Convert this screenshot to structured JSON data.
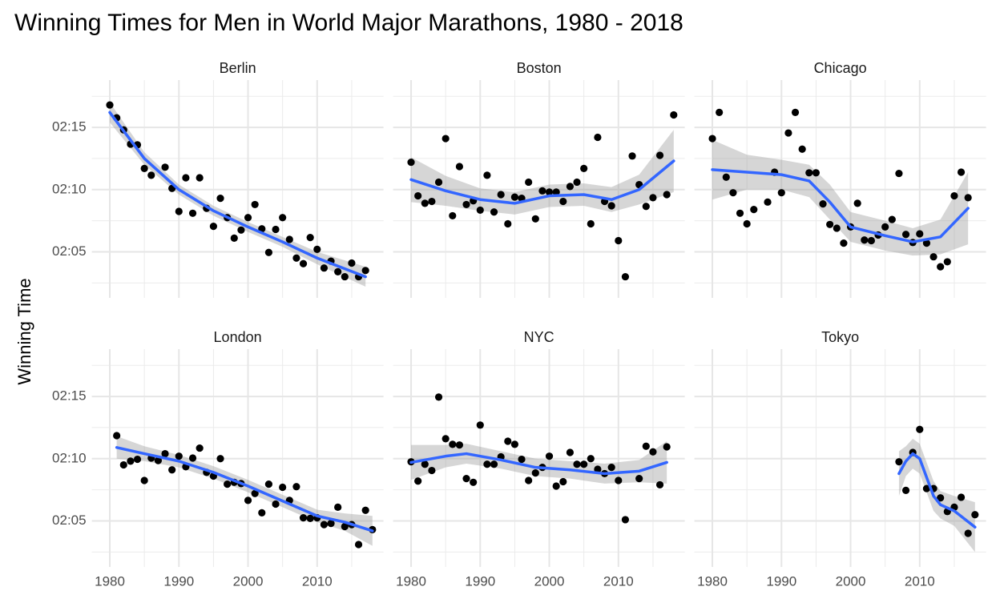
{
  "chart_data": {
    "type": "scatter",
    "title": "Winning Times for Men in World Major Marathons, 1980 - 2018",
    "ylabel": "Winning Time",
    "xlim": [
      1977.4,
      2019.6
    ],
    "xticks": [
      1980,
      1990,
      2000,
      2010
    ],
    "minor_xticks": [
      1985,
      1995,
      2005,
      2015
    ],
    "ylim": [
      121.3,
      138.8
    ],
    "yticks": [
      {
        "value": 125,
        "label": "02:05"
      },
      {
        "value": 130,
        "label": "02:10"
      },
      {
        "value": 135,
        "label": "02:15"
      }
    ],
    "minor_yticks": [
      122.5,
      127.5,
      132.5,
      137.5
    ],
    "grid": true,
    "point_color": "#000000",
    "fit_color": "#3366FF",
    "band_color": "#999999",
    "panels": [
      {
        "title": "Berlin",
        "x": [
          1980,
          1981,
          1982,
          1983,
          1984,
          1985,
          1986,
          1988,
          1989,
          1990,
          1991,
          1992,
          1993,
          1994,
          1995,
          1996,
          1997,
          1998,
          1999,
          2000,
          2001,
          2002,
          2003,
          2004,
          2005,
          2006,
          2007,
          2008,
          2009,
          2010,
          2011,
          2012,
          2013,
          2014,
          2015,
          2016,
          2017
        ],
        "values": [
          136.8,
          135.77,
          134.8,
          133.65,
          133.6,
          131.7,
          131.15,
          131.8,
          130.1,
          128.25,
          130.95,
          128.1,
          130.95,
          128.5,
          127.05,
          129.3,
          127.75,
          126.1,
          126.75,
          127.75,
          128.8,
          126.85,
          124.95,
          126.8,
          127.75,
          126.0,
          124.5,
          124.05,
          126.15,
          125.2,
          123.7,
          124.25,
          123.4,
          123.0,
          124.1,
          123.0,
          123.5
        ],
        "fit_x": [
          1980,
          1985,
          1990,
          1995,
          2000,
          2005,
          2010,
          2017
        ],
        "fit": [
          136.2,
          132.5,
          130.0,
          128.3,
          127.0,
          125.8,
          124.5,
          123.0
        ],
        "fit_low": [
          135.4,
          132.0,
          129.6,
          127.9,
          126.6,
          125.4,
          124.0,
          122.2
        ],
        "fit_high": [
          137.0,
          133.0,
          130.4,
          128.7,
          127.4,
          126.2,
          125.0,
          123.8
        ]
      },
      {
        "title": "Boston",
        "x": [
          1980,
          1981,
          1982,
          1983,
          1984,
          1985,
          1986,
          1987,
          1988,
          1989,
          1990,
          1991,
          1992,
          1993,
          1994,
          1995,
          1996,
          1997,
          1998,
          1999,
          2000,
          2001,
          2002,
          2003,
          2004,
          2005,
          2006,
          2007,
          2008,
          2009,
          2010,
          2011,
          2012,
          2013,
          2014,
          2015,
          2016,
          2017,
          2018
        ],
        "values": [
          132.2,
          129.5,
          128.9,
          129.05,
          130.6,
          134.1,
          127.9,
          131.85,
          128.8,
          129.1,
          128.35,
          131.15,
          128.2,
          129.6,
          127.25,
          129.4,
          129.3,
          130.6,
          127.65,
          129.9,
          129.8,
          129.8,
          129.05,
          130.25,
          130.6,
          131.7,
          127.25,
          134.2,
          129.05,
          128.7,
          125.9,
          123.0,
          132.7,
          130.4,
          128.65,
          129.35,
          132.75,
          129.6,
          136.0
        ],
        "fit_x": [
          1980,
          1985,
          1990,
          1995,
          2000,
          2005,
          2009,
          2013,
          2018
        ],
        "fit": [
          130.8,
          129.9,
          129.2,
          128.9,
          129.5,
          129.6,
          129.2,
          130.0,
          132.3
        ],
        "fit_low": [
          129.0,
          128.7,
          128.3,
          128.0,
          128.6,
          128.7,
          128.2,
          128.8,
          129.8
        ],
        "fit_high": [
          132.6,
          131.1,
          130.1,
          129.8,
          130.4,
          130.5,
          130.2,
          131.2,
          134.8
        ]
      },
      {
        "title": "Chicago",
        "x": [
          1980,
          1981,
          1982,
          1983,
          1984,
          1985,
          1986,
          1988,
          1989,
          1990,
          1991,
          1992,
          1993,
          1994,
          1995,
          1996,
          1997,
          1998,
          1999,
          2000,
          2001,
          2002,
          2003,
          2004,
          2005,
          2006,
          2007,
          2008,
          2009,
          2010,
          2011,
          2012,
          2013,
          2014,
          2015,
          2016,
          2017
        ],
        "values": [
          134.1,
          136.2,
          131.0,
          129.75,
          128.1,
          127.25,
          128.4,
          129.0,
          131.4,
          129.75,
          134.55,
          136.2,
          133.25,
          131.35,
          131.35,
          128.85,
          127.2,
          126.9,
          125.7,
          127.0,
          128.9,
          125.95,
          125.9,
          126.35,
          127.0,
          127.6,
          131.3,
          126.4,
          125.75,
          126.45,
          125.7,
          124.6,
          123.8,
          124.2,
          129.5,
          131.4,
          129.35
        ],
        "fit_x": [
          1980,
          1985,
          1990,
          1994,
          1997,
          2000,
          2005,
          2009,
          2013,
          2017
        ],
        "fit": [
          131.6,
          131.4,
          131.2,
          130.7,
          129.0,
          127.0,
          126.3,
          125.8,
          126.2,
          128.5
        ],
        "fit_low": [
          129.2,
          130.0,
          130.0,
          129.4,
          127.6,
          125.8,
          125.1,
          124.7,
          124.8,
          125.6
        ],
        "fit_high": [
          134.0,
          132.8,
          132.4,
          132.0,
          130.4,
          128.2,
          127.5,
          126.9,
          127.6,
          131.4
        ]
      },
      {
        "title": "London",
        "x": [
          1981,
          1982,
          1983,
          1984,
          1985,
          1986,
          1987,
          1988,
          1989,
          1990,
          1991,
          1992,
          1993,
          1994,
          1995,
          1996,
          1997,
          1998,
          1999,
          2000,
          2001,
          2002,
          2003,
          2004,
          2005,
          2006,
          2007,
          2008,
          2009,
          2010,
          2011,
          2012,
          2013,
          2014,
          2015,
          2016,
          2017,
          2018
        ],
        "values": [
          131.85,
          129.5,
          129.8,
          129.95,
          128.25,
          130.05,
          129.85,
          130.4,
          129.1,
          130.2,
          129.35,
          130.05,
          130.85,
          128.9,
          128.6,
          130.0,
          127.95,
          128.1,
          128.0,
          126.65,
          127.2,
          125.65,
          127.95,
          126.35,
          127.7,
          126.65,
          127.75,
          125.25,
          125.2,
          125.25,
          124.7,
          124.8,
          126.1,
          124.55,
          124.7,
          123.1,
          125.85,
          124.3
        ],
        "fit_x": [
          1981,
          1985,
          1990,
          1995,
          2000,
          2005,
          2010,
          2014,
          2018
        ],
        "fit": [
          130.9,
          130.4,
          129.8,
          128.9,
          127.8,
          126.6,
          125.4,
          124.9,
          124.2
        ],
        "fit_low": [
          130.0,
          129.8,
          129.3,
          128.4,
          127.3,
          126.1,
          124.9,
          124.2,
          123.0
        ],
        "fit_high": [
          131.8,
          131.0,
          130.3,
          129.4,
          128.3,
          127.1,
          125.9,
          125.6,
          125.4
        ]
      },
      {
        "title": "NYC",
        "x": [
          1980,
          1981,
          1982,
          1983,
          1984,
          1985,
          1986,
          1987,
          1988,
          1989,
          1990,
          1991,
          1992,
          1993,
          1994,
          1995,
          1996,
          1997,
          1998,
          1999,
          2000,
          2001,
          2002,
          2003,
          2004,
          2005,
          2006,
          2007,
          2008,
          2009,
          2010,
          2011,
          2013,
          2014,
          2015,
          2016,
          2017
        ],
        "values": [
          129.75,
          128.2,
          129.55,
          129.05,
          134.95,
          131.6,
          131.15,
          131.1,
          128.4,
          128.1,
          132.7,
          129.55,
          129.55,
          130.15,
          131.4,
          131.15,
          129.95,
          128.25,
          128.85,
          129.3,
          130.2,
          127.8,
          128.15,
          130.5,
          129.55,
          129.55,
          130.0,
          129.15,
          128.8,
          129.3,
          128.25,
          125.1,
          128.4,
          131.0,
          130.55,
          127.9,
          130.95
        ],
        "fit_x": [
          1980,
          1985,
          1988,
          1993,
          1998,
          2003,
          2008,
          2013,
          2017
        ],
        "fit": [
          129.7,
          130.2,
          130.4,
          129.9,
          129.3,
          129.1,
          128.8,
          129.0,
          129.7
        ],
        "fit_low": [
          128.3,
          129.3,
          129.6,
          129.2,
          128.6,
          128.4,
          128.0,
          128.1,
          128.0
        ],
        "fit_high": [
          131.1,
          131.1,
          131.2,
          130.6,
          130.0,
          129.8,
          129.6,
          129.9,
          131.4
        ]
      },
      {
        "title": "Tokyo",
        "x": [
          2007,
          2008,
          2009,
          2010,
          2011,
          2012,
          2013,
          2014,
          2015,
          2016,
          2017,
          2018
        ],
        "values": [
          129.75,
          127.45,
          130.5,
          132.35,
          127.6,
          127.6,
          126.85,
          125.75,
          126.1,
          126.9,
          124.0,
          125.5
        ],
        "fit_x": [
          2007,
          2008,
          2009,
          2010,
          2011,
          2012,
          2013,
          2015,
          2018
        ],
        "fit": [
          128.8,
          129.8,
          130.4,
          130.0,
          128.5,
          127.0,
          126.3,
          125.8,
          124.5
        ],
        "fit_low": [
          127.0,
          128.6,
          129.2,
          128.8,
          127.3,
          125.8,
          125.2,
          124.6,
          122.5
        ],
        "fit_high": [
          130.6,
          131.0,
          131.6,
          131.2,
          129.7,
          128.2,
          127.4,
          127.0,
          126.5
        ]
      }
    ]
  }
}
